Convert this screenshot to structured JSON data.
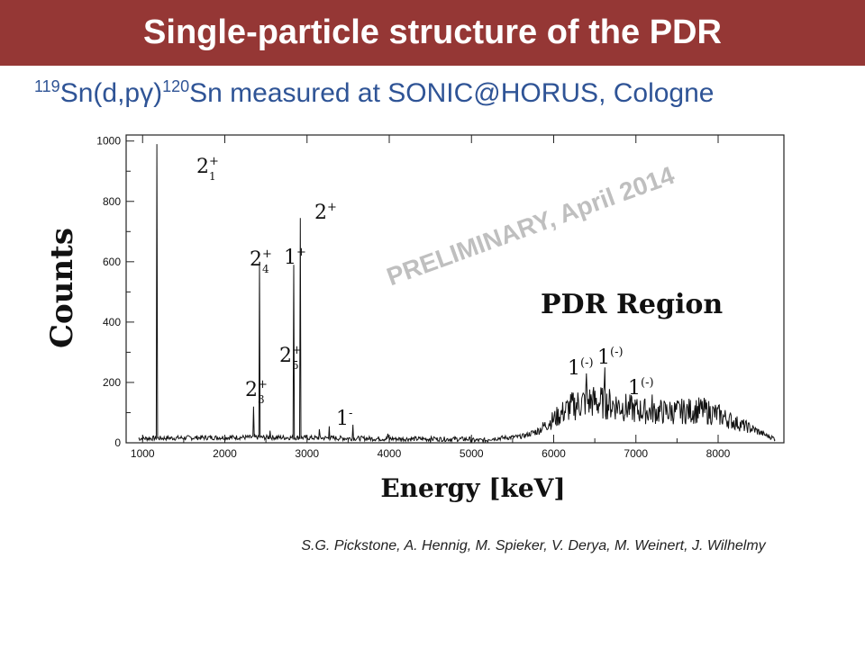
{
  "slide": {
    "title": "Single-particle structure of the PDR",
    "subtitle": {
      "mass_a": "119",
      "text_a": "Sn(d,pγ)",
      "mass_b": "120",
      "text_b": "Sn measured at SONIC@HORUS, Cologne"
    },
    "credits": "S.G. Pickstone, A. Hennig, M. Spieker, V. Derya, M. Weinert, J. Wilhelmy",
    "colors": {
      "title_bg": "#953735",
      "title_fg": "#ffffff",
      "subtitle": "#2f5496",
      "watermark": "#bfbfbf"
    }
  },
  "chart_data": {
    "type": "line",
    "xlabel": "Energy [keV]",
    "ylabel": "Counts",
    "xlim": [
      800,
      8800
    ],
    "ylim": [
      0,
      1020
    ],
    "x_ticks": [
      1000,
      2000,
      3000,
      4000,
      5000,
      6000,
      7000,
      8000
    ],
    "y_ticks": [
      0,
      200,
      400,
      600,
      800,
      1000
    ],
    "grid": false,
    "watermark": "PRELIMINARY, April 2014",
    "region_label": "PDR Region",
    "peaks": [
      {
        "energy": 1171,
        "counts": 990,
        "label": "2",
        "sup": "+",
        "sub": "1"
      },
      {
        "energy": 2350,
        "counts": 120,
        "label": "2",
        "sup": "+",
        "sub": "3"
      },
      {
        "energy": 2420,
        "counts": 600,
        "label": "2",
        "sup": "+",
        "sub": "4"
      },
      {
        "energy": 2730,
        "counts": 210,
        "label": "2",
        "sup": "+",
        "sub": "5"
      },
      {
        "energy": 2840,
        "counts": 590,
        "label": "1",
        "sup": "+",
        "sub": ""
      },
      {
        "energy": 2920,
        "counts": 745,
        "label": "2",
        "sup": "+",
        "sub": ""
      },
      {
        "energy": 3270,
        "counts": 55,
        "label": "1",
        "sup": "-",
        "sub": ""
      },
      {
        "energy": 6400,
        "counts": 230,
        "label": "1",
        "sup": "(-)",
        "sub": ""
      },
      {
        "energy": 6620,
        "counts": 250,
        "label": "1",
        "sup": "(-)",
        "sub": ""
      },
      {
        "energy": 7200,
        "counts": 160,
        "label": "1",
        "sup": "(-)",
        "sub": ""
      }
    ],
    "small_peaks": [
      {
        "energy": 2550,
        "counts": 40
      },
      {
        "energy": 3150,
        "counts": 45
      },
      {
        "energy": 3560,
        "counts": 60
      },
      {
        "energy": 3980,
        "counts": 30
      },
      {
        "energy": 4250,
        "counts": 20
      },
      {
        "energy": 4550,
        "counts": 18
      },
      {
        "energy": 5600,
        "counts": 15
      }
    ],
    "pdr_envelope": [
      [
        5200,
        5
      ],
      [
        5600,
        12
      ],
      [
        5800,
        30
      ],
      [
        6000,
        70
      ],
      [
        6200,
        110
      ],
      [
        6400,
        130
      ],
      [
        6600,
        125
      ],
      [
        6800,
        115
      ],
      [
        7000,
        100
      ],
      [
        7200,
        95
      ],
      [
        7500,
        95
      ],
      [
        7800,
        100
      ],
      [
        8000,
        85
      ],
      [
        8200,
        60
      ],
      [
        8400,
        40
      ],
      [
        8600,
        15
      ],
      [
        8700,
        5
      ]
    ]
  }
}
